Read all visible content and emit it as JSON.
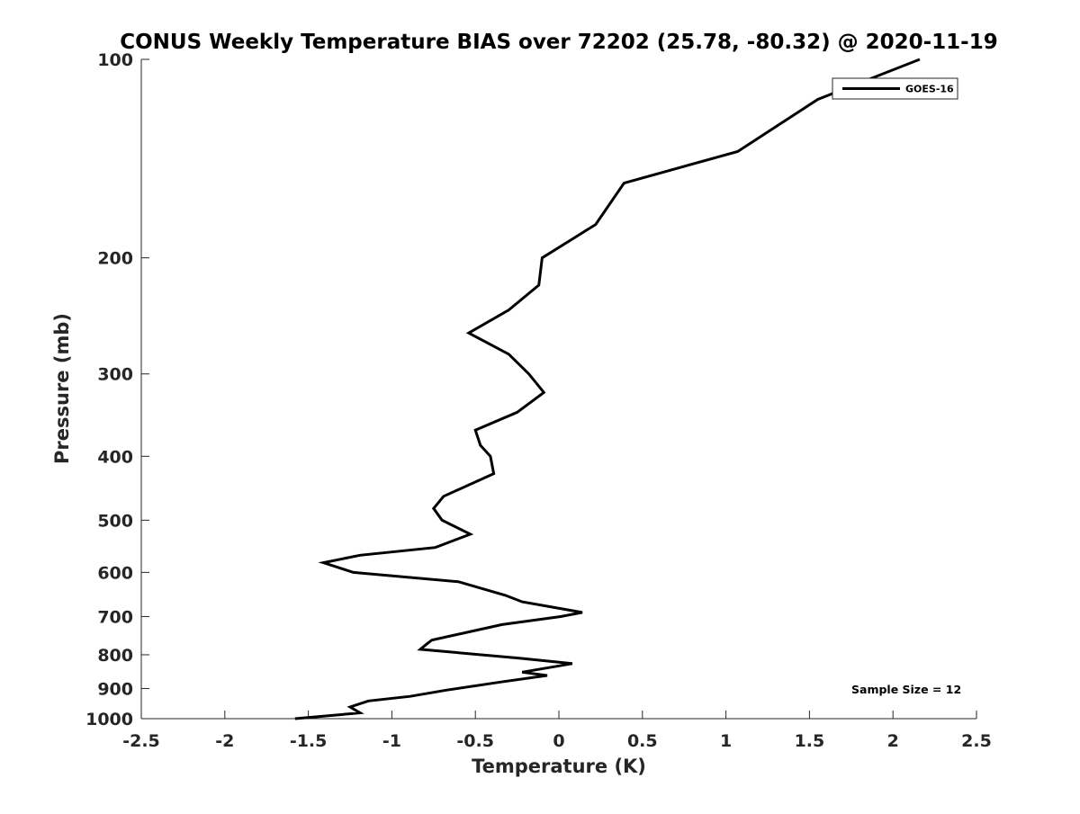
{
  "chart_data": {
    "type": "line",
    "title": "CONUS Weekly Temperature BIAS over 72202 (25.78, -80.32) @ 2020-11-19",
    "xlabel": "Temperature (K)",
    "ylabel": "Pressure (mb)",
    "xlim": [
      -2.5,
      2.5
    ],
    "ylim": [
      100,
      1000
    ],
    "yscale": "log",
    "ydirection": "reverse",
    "grid": false,
    "xticks": [
      -2.5,
      -2,
      -1.5,
      -1,
      -0.5,
      0,
      0.5,
      1,
      1.5,
      2,
      2.5
    ],
    "xtick_labels": [
      "-2.5",
      "-2",
      "-1.5",
      "-1",
      "-0.5",
      "0",
      "0.5",
      "1",
      "1.5",
      "2",
      "2.5"
    ],
    "yticks": [
      100,
      200,
      300,
      400,
      500,
      600,
      700,
      800,
      900,
      1000
    ],
    "ytick_labels": [
      "100",
      "200",
      "300",
      "400",
      "500",
      "600",
      "700",
      "800",
      "900",
      "1000"
    ],
    "legend": {
      "position": "top-right",
      "entries": [
        "GOES-16"
      ]
    },
    "annotation": "Sample Size = 12",
    "series": [
      {
        "name": "GOES-16",
        "color": "#000000",
        "points": [
          {
            "p": 100,
            "t": 2.16
          },
          {
            "p": 115,
            "t": 1.55
          },
          {
            "p": 138,
            "t": 1.07
          },
          {
            "p": 154,
            "t": 0.39
          },
          {
            "p": 178,
            "t": 0.22
          },
          {
            "p": 200,
            "t": -0.1
          },
          {
            "p": 220,
            "t": -0.12
          },
          {
            "p": 240,
            "t": -0.3
          },
          {
            "p": 260,
            "t": -0.54
          },
          {
            "p": 280,
            "t": -0.3
          },
          {
            "p": 300,
            "t": -0.18
          },
          {
            "p": 320,
            "t": -0.09
          },
          {
            "p": 343,
            "t": -0.25
          },
          {
            "p": 365,
            "t": -0.5
          },
          {
            "p": 385,
            "t": -0.47
          },
          {
            "p": 400,
            "t": -0.41
          },
          {
            "p": 425,
            "t": -0.39
          },
          {
            "p": 460,
            "t": -0.69
          },
          {
            "p": 480,
            "t": -0.75
          },
          {
            "p": 500,
            "t": -0.7
          },
          {
            "p": 525,
            "t": -0.53
          },
          {
            "p": 550,
            "t": -0.74
          },
          {
            "p": 565,
            "t": -1.19
          },
          {
            "p": 580,
            "t": -1.41
          },
          {
            "p": 600,
            "t": -1.23
          },
          {
            "p": 620,
            "t": -0.6
          },
          {
            "p": 650,
            "t": -0.32
          },
          {
            "p": 665,
            "t": -0.22
          },
          {
            "p": 690,
            "t": 0.14
          },
          {
            "p": 700,
            "t": 0.01
          },
          {
            "p": 720,
            "t": -0.34
          },
          {
            "p": 760,
            "t": -0.76
          },
          {
            "p": 770,
            "t": -0.79
          },
          {
            "p": 785,
            "t": -0.83
          },
          {
            "p": 810,
            "t": -0.23
          },
          {
            "p": 825,
            "t": 0.08
          },
          {
            "p": 850,
            "t": -0.22
          },
          {
            "p": 860,
            "t": -0.07
          },
          {
            "p": 880,
            "t": -0.35
          },
          {
            "p": 905,
            "t": -0.67
          },
          {
            "p": 925,
            "t": -0.89
          },
          {
            "p": 940,
            "t": -1.14
          },
          {
            "p": 960,
            "t": -1.25
          },
          {
            "p": 980,
            "t": -1.19
          },
          {
            "p": 1000,
            "t": -1.58
          }
        ]
      }
    ]
  }
}
